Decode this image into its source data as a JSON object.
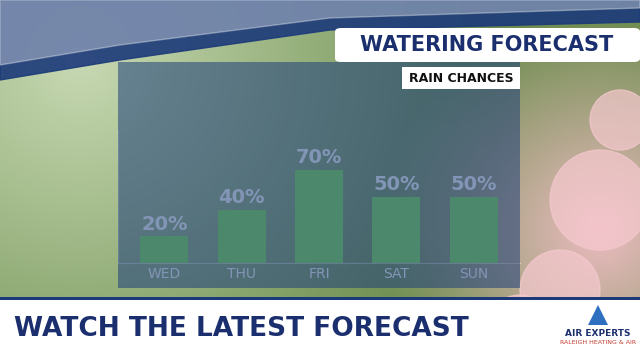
{
  "chart_data": {
    "type": "bar",
    "title": "WATERING FORECAST",
    "subtitle": "RAIN CHANCES",
    "categories": [
      "WED",
      "THU",
      "FRI",
      "SAT",
      "SUN"
    ],
    "values": [
      20,
      40,
      70,
      50,
      50
    ],
    "value_labels": [
      "20%",
      "40%",
      "70%",
      "50%",
      "50%"
    ],
    "data_labels": true,
    "color": "#86e65c",
    "ylim": [
      0,
      100
    ],
    "yticks": [],
    "grid": false,
    "tick_labels": "x",
    "annotations": [
      "WATCH THE LATEST FORECAST",
      "AIR EXPERTS",
      "RALEIGH HEATING & AIR"
    ]
  }
}
